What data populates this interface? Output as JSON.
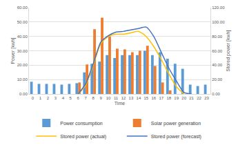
{
  "chart_data": {
    "type": "bar",
    "x_label": "Time",
    "y_label": "Power [kwh]",
    "y2_label": "Stored power [kwh]",
    "categories": [
      "0",
      "1",
      "2",
      "3",
      "4",
      "5",
      "6",
      "7",
      "8",
      "9",
      "10",
      "11",
      "12",
      "13",
      "14",
      "15",
      "16",
      "17",
      "18",
      "19",
      "20",
      "21",
      "22",
      "23"
    ],
    "ylim": [
      0,
      60
    ],
    "yticks": [
      {
        "value": 0,
        "label": "0.00"
      },
      {
        "value": 10,
        "label": "10.00"
      },
      {
        "value": 20,
        "label": "20.00"
      },
      {
        "value": 30,
        "label": "30.00"
      },
      {
        "value": 40,
        "label": "40.00"
      },
      {
        "value": 50,
        "label": "50.00"
      },
      {
        "value": 60,
        "label": "60.00"
      }
    ],
    "y2lim": [
      0,
      120
    ],
    "y2ticks": [
      {
        "value": 0,
        "label": "0.00"
      },
      {
        "value": 20,
        "label": "20.00"
      },
      {
        "value": 40,
        "label": "40.00"
      },
      {
        "value": 60,
        "label": "60.00"
      },
      {
        "value": 80,
        "label": "80.00"
      },
      {
        "value": 100,
        "label": "100.00"
      },
      {
        "value": 120,
        "label": "120.00"
      }
    ],
    "grid": true,
    "legend": "bottom",
    "series": [
      {
        "name": "Power consumption",
        "type": "bar",
        "color": "#5b9bd5",
        "values": [
          8.5,
          7,
          7,
          7,
          6.5,
          7,
          7.5,
          15,
          21,
          22.5,
          27,
          25,
          27,
          27,
          27,
          30,
          27,
          29,
          24.5,
          21,
          17.5,
          6.5,
          5.5,
          6.5
        ]
      },
      {
        "name": "Solar power generation",
        "type": "bar",
        "color": "#ed7d31",
        "values": [
          0,
          0,
          0,
          0,
          0,
          0,
          8,
          20.5,
          45,
          53,
          40,
          31.5,
          31,
          29,
          30,
          33.5,
          19.5,
          8,
          2.5,
          0,
          0,
          0,
          0,
          0
        ]
      },
      {
        "name": "Stored power (actual)",
        "type": "line",
        "axis": "y2",
        "color": "#ffc000",
        "values": [
          null,
          null,
          null,
          null,
          null,
          null,
          0,
          12,
          40,
          70,
          80,
          83,
          83,
          85,
          87,
          80,
          66,
          48,
          28,
          10,
          0,
          null,
          null,
          null
        ]
      },
      {
        "name": "Stored power (forecast)",
        "type": "line",
        "axis": "y2",
        "color": "#4472c4",
        "values": [
          null,
          null,
          null,
          null,
          null,
          null,
          0,
          14,
          42,
          72,
          81,
          86,
          87,
          89,
          91,
          93,
          80,
          58,
          36,
          18,
          2,
          0,
          null,
          null
        ]
      }
    ]
  }
}
